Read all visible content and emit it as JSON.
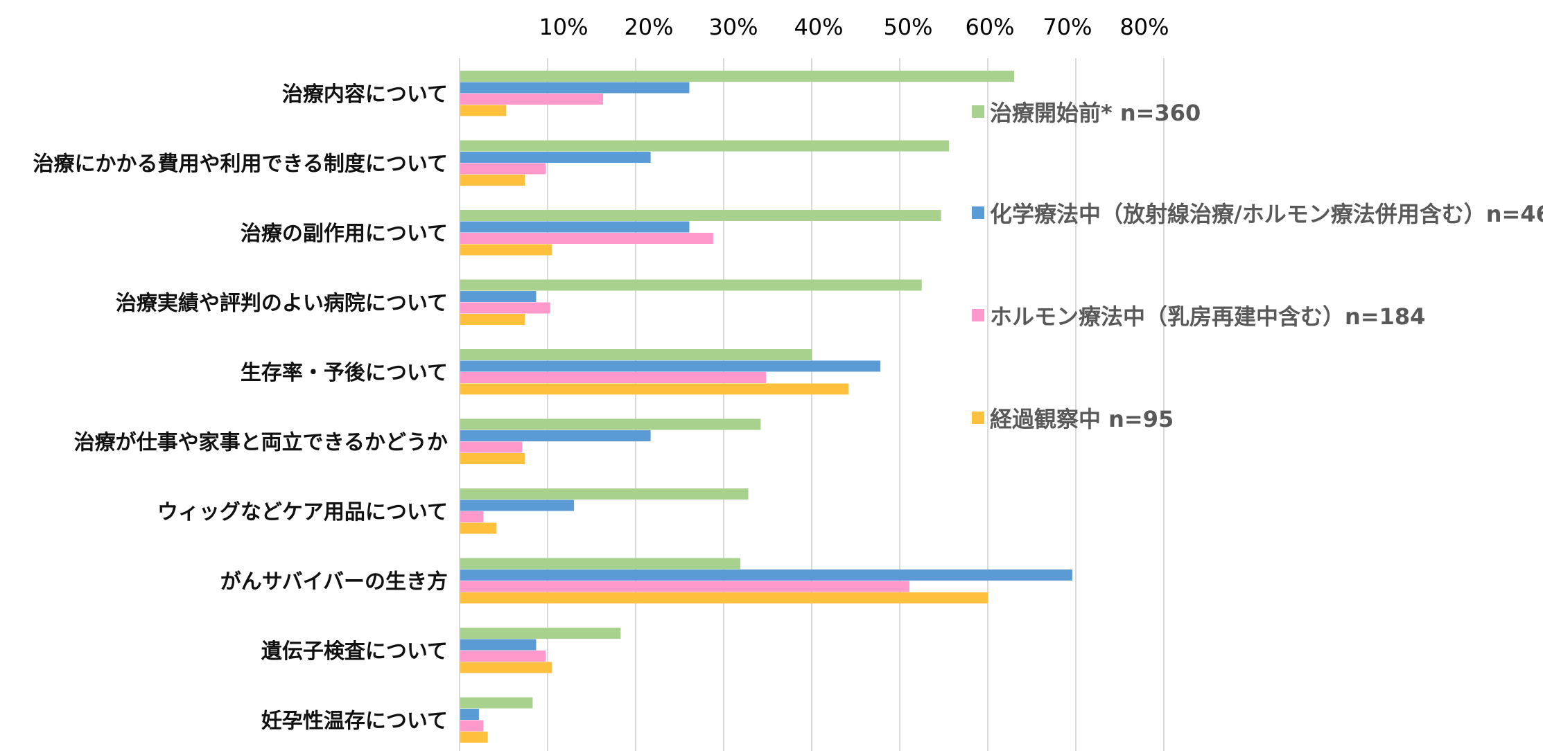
{
  "chart_data": {
    "type": "bar",
    "orientation": "horizontal",
    "categories": [
      "治療内容について",
      "治療にかかる費用や利用できる制度について",
      "治療の副作用について",
      "治療実績や評判のよい病院について",
      "生存率・予後について",
      "治療が仕事や家事と両立できるかどうか",
      "ウィッグなどケア用品について",
      "がんサバイバーの生き方",
      "遺伝子検査について",
      "妊孕性温存について"
    ],
    "series": [
      {
        "name": "治療開始前* n=360",
        "color": "#A9D18E",
        "values": [
          63,
          55.6,
          54.7,
          52.5,
          40,
          34.2,
          32.8,
          31.9,
          18.3,
          8.3
        ]
      },
      {
        "name": "化学療法中（放射線治療/ホルモン療法併用含む）n=46",
        "color": "#5B9BD5",
        "values": [
          26.1,
          21.7,
          26.1,
          8.7,
          47.8,
          21.7,
          13,
          69.6,
          8.7,
          2.2
        ]
      },
      {
        "name": "ホルモン療法中（乳房再建中含む）n=184",
        "color": "#FF99CC",
        "values": [
          16.3,
          9.8,
          28.8,
          10.3,
          34.8,
          7.1,
          2.7,
          51.1,
          9.8,
          2.7
        ]
      },
      {
        "name": "経過観察中 n=95",
        "color": "#FFC03E",
        "values": [
          5.3,
          7.4,
          10.5,
          7.4,
          44.2,
          7.4,
          4.2,
          60,
          10.5,
          3.2
        ]
      }
    ],
    "xlim": [
      0,
      80
    ],
    "xticks": [
      "10%",
      "20%",
      "30%",
      "40%",
      "50%",
      "60%",
      "70%",
      "80%"
    ],
    "grid": true,
    "legend_position": "right",
    "title": "",
    "xlabel": "",
    "ylabel": ""
  }
}
